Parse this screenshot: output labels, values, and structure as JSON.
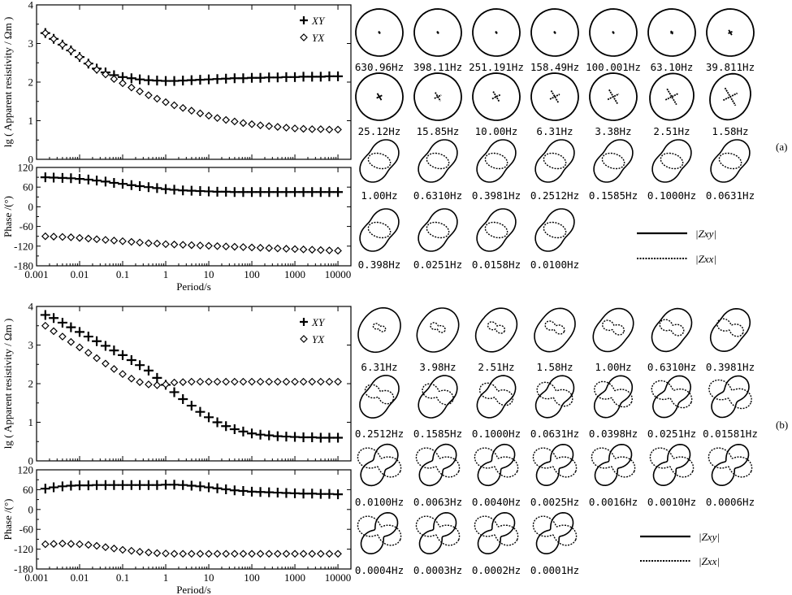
{
  "panel_labels": [
    "(a)",
    "(b)"
  ],
  "legend_polar": {
    "solid": "|Zxy|",
    "dotted": "|Zxx|"
  },
  "chart_data": [
    {
      "panel": "(a)",
      "type": "scatter",
      "subplot": "apparent-resistivity",
      "xlabel": "",
      "ylabel": "lg ( Apparent resistivity / Ωm )",
      "xscale": "log",
      "xlim": [
        0.001,
        20000
      ],
      "ylim": [
        0,
        4
      ],
      "yticks": [
        "0",
        "1",
        "2",
        "3",
        "4"
      ],
      "grid": false,
      "legend": "top-right",
      "series": [
        {
          "name": "XY",
          "marker": "plus",
          "x": [
            0.0016,
            0.0025,
            0.004,
            0.0063,
            0.01,
            0.016,
            0.025,
            0.04,
            0.063,
            0.1,
            0.16,
            0.25,
            0.4,
            0.63,
            1,
            1.58,
            2.51,
            3.98,
            6.31,
            10,
            15.8,
            25.1,
            39.8,
            63.1,
            100,
            158,
            251,
            398,
            631,
            1000,
            1580,
            2510,
            3980,
            6310,
            10000
          ],
          "y": [
            3.27,
            3.12,
            2.97,
            2.82,
            2.65,
            2.48,
            2.35,
            2.25,
            2.18,
            2.13,
            2.1,
            2.07,
            2.05,
            2.04,
            2.03,
            2.03,
            2.04,
            2.05,
            2.06,
            2.07,
            2.08,
            2.09,
            2.1,
            2.1,
            2.11,
            2.11,
            2.12,
            2.12,
            2.13,
            2.13,
            2.14,
            2.14,
            2.14,
            2.15,
            2.15
          ]
        },
        {
          "name": "YX",
          "marker": "diamond",
          "x": [
            0.0016,
            0.0025,
            0.004,
            0.0063,
            0.01,
            0.016,
            0.025,
            0.04,
            0.063,
            0.1,
            0.16,
            0.25,
            0.4,
            0.63,
            1,
            1.58,
            2.51,
            3.98,
            6.31,
            10,
            15.8,
            25.1,
            39.8,
            63.1,
            100,
            158,
            251,
            398,
            631,
            1000,
            1580,
            2510,
            3980,
            6310,
            10000
          ],
          "y": [
            3.27,
            3.12,
            2.97,
            2.82,
            2.65,
            2.48,
            2.32,
            2.2,
            2.08,
            1.97,
            1.86,
            1.76,
            1.66,
            1.57,
            1.48,
            1.4,
            1.33,
            1.26,
            1.19,
            1.13,
            1.07,
            1.02,
            0.98,
            0.94,
            0.91,
            0.88,
            0.86,
            0.84,
            0.82,
            0.8,
            0.79,
            0.78,
            0.78,
            0.77,
            0.77
          ]
        }
      ]
    },
    {
      "panel": "(a)",
      "type": "scatter",
      "subplot": "phase",
      "xlabel": "Period/s",
      "ylabel": "Phase /(°)",
      "xscale": "log",
      "xlim": [
        0.001,
        20000
      ],
      "ylim": [
        -180,
        120
      ],
      "yticks": [
        "-180",
        "-120",
        "-60",
        "0",
        "60",
        "120"
      ],
      "xticks": [
        "0.001",
        "0.01",
        "0.1",
        "1",
        "10",
        "100",
        "1000",
        "10000"
      ],
      "series": [
        {
          "name": "XY",
          "marker": "plus",
          "x": [
            0.0016,
            0.0025,
            0.004,
            0.0063,
            0.01,
            0.016,
            0.025,
            0.04,
            0.063,
            0.1,
            0.16,
            0.25,
            0.4,
            0.63,
            1,
            1.58,
            2.51,
            3.98,
            6.31,
            10,
            15.8,
            25.1,
            39.8,
            63.1,
            100,
            158,
            251,
            398,
            631,
            1000,
            1580,
            2510,
            3980,
            6310,
            10000
          ],
          "y": [
            90,
            89,
            88,
            87,
            85,
            83,
            80,
            77,
            73,
            70,
            66,
            63,
            60,
            57,
            54,
            52,
            50,
            49,
            48,
            47,
            46,
            46,
            45,
            45,
            45,
            45,
            45,
            45,
            45,
            45,
            45,
            45,
            45,
            45,
            45
          ]
        },
        {
          "name": "YX",
          "marker": "diamond",
          "x": [
            0.0016,
            0.0025,
            0.004,
            0.0063,
            0.01,
            0.016,
            0.025,
            0.04,
            0.063,
            0.1,
            0.16,
            0.25,
            0.4,
            0.63,
            1,
            1.58,
            2.51,
            3.98,
            6.31,
            10,
            15.8,
            25.1,
            39.8,
            63.1,
            100,
            158,
            251,
            398,
            631,
            1000,
            1580,
            2510,
            3980,
            6310,
            10000
          ],
          "y": [
            -90,
            -91,
            -92,
            -93,
            -95,
            -97,
            -99,
            -101,
            -103,
            -105,
            -107,
            -109,
            -111,
            -112,
            -114,
            -115,
            -116,
            -117,
            -118,
            -119,
            -120,
            -121,
            -122,
            -123,
            -124,
            -125,
            -126,
            -127,
            -128,
            -129,
            -130,
            -131,
            -132,
            -133,
            -134
          ]
        }
      ]
    },
    {
      "panel": "(b)",
      "type": "scatter",
      "subplot": "apparent-resistivity",
      "xlabel": "",
      "ylabel": "lg ( Apparent resistivity / Ωm )",
      "xscale": "log",
      "xlim": [
        0.001,
        20000
      ],
      "ylim": [
        0,
        4
      ],
      "yticks": [
        "0",
        "1",
        "2",
        "3",
        "4"
      ],
      "grid": false,
      "legend": "top-right",
      "series": [
        {
          "name": "XY",
          "marker": "plus",
          "x": [
            0.0016,
            0.0025,
            0.004,
            0.0063,
            0.01,
            0.016,
            0.025,
            0.04,
            0.063,
            0.1,
            0.16,
            0.25,
            0.4,
            0.63,
            1,
            1.58,
            2.51,
            3.98,
            6.31,
            10,
            15.8,
            25.1,
            39.8,
            63.1,
            100,
            158,
            251,
            398,
            631,
            1000,
            1580,
            2510,
            3980,
            6310,
            10000
          ],
          "y": [
            3.78,
            3.7,
            3.58,
            3.46,
            3.34,
            3.22,
            3.1,
            2.98,
            2.86,
            2.74,
            2.61,
            2.48,
            2.34,
            2.15,
            1.97,
            1.78,
            1.6,
            1.43,
            1.27,
            1.13,
            1.0,
            0.9,
            0.82,
            0.76,
            0.71,
            0.68,
            0.66,
            0.64,
            0.63,
            0.62,
            0.61,
            0.61,
            0.6,
            0.6,
            0.6
          ]
        },
        {
          "name": "YX",
          "marker": "diamond",
          "x": [
            0.0016,
            0.0025,
            0.004,
            0.0063,
            0.01,
            0.016,
            0.025,
            0.04,
            0.063,
            0.1,
            0.16,
            0.25,
            0.4,
            0.63,
            1,
            1.58,
            2.51,
            3.98,
            6.31,
            10,
            15.8,
            25.1,
            39.8,
            63.1,
            100,
            158,
            251,
            398,
            631,
            1000,
            1580,
            2510,
            3980,
            6310,
            10000
          ],
          "y": [
            3.5,
            3.36,
            3.22,
            3.08,
            2.94,
            2.8,
            2.66,
            2.52,
            2.38,
            2.25,
            2.13,
            2.04,
            1.98,
            1.96,
            1.98,
            2.03,
            2.04,
            2.05,
            2.05,
            2.05,
            2.05,
            2.05,
            2.05,
            2.05,
            2.05,
            2.05,
            2.05,
            2.05,
            2.05,
            2.05,
            2.05,
            2.05,
            2.05,
            2.05,
            2.05
          ]
        }
      ]
    },
    {
      "panel": "(b)",
      "type": "scatter",
      "subplot": "phase",
      "xlabel": "Period/s",
      "ylabel": "Phase /(°)",
      "xscale": "log",
      "xlim": [
        0.001,
        20000
      ],
      "ylim": [
        -180,
        120
      ],
      "yticks": [
        "-180",
        "-120",
        "-60",
        "0",
        "60",
        "120"
      ],
      "xticks": [
        "0.001",
        "0.01",
        "0.1",
        "1",
        "10",
        "100",
        "1000",
        "10000"
      ],
      "series": [
        {
          "name": "XY",
          "marker": "plus",
          "x": [
            0.0016,
            0.0025,
            0.004,
            0.0063,
            0.01,
            0.016,
            0.025,
            0.04,
            0.063,
            0.1,
            0.16,
            0.25,
            0.4,
            0.63,
            1,
            1.58,
            2.51,
            3.98,
            6.31,
            10,
            15.8,
            25.1,
            39.8,
            63.1,
            100,
            158,
            251,
            398,
            631,
            1000,
            1580,
            2510,
            3980,
            6310,
            10000
          ],
          "y": [
            63,
            67,
            70,
            72,
            73,
            73,
            74,
            74,
            74,
            74,
            74,
            74,
            74,
            74,
            75,
            75,
            74,
            72,
            70,
            67,
            64,
            61,
            58,
            56,
            54,
            53,
            52,
            51,
            50,
            49,
            48,
            48,
            47,
            47,
            46
          ]
        },
        {
          "name": "YX",
          "marker": "diamond",
          "x": [
            0.0016,
            0.0025,
            0.004,
            0.0063,
            0.01,
            0.016,
            0.025,
            0.04,
            0.063,
            0.1,
            0.16,
            0.25,
            0.4,
            0.63,
            1,
            1.58,
            2.51,
            3.98,
            6.31,
            10,
            15.8,
            25.1,
            39.8,
            63.1,
            100,
            158,
            251,
            398,
            631,
            1000,
            1580,
            2510,
            3980,
            6310,
            10000
          ],
          "y": [
            -105,
            -104,
            -103,
            -104,
            -105,
            -107,
            -110,
            -114,
            -118,
            -122,
            -125,
            -128,
            -130,
            -132,
            -133,
            -134,
            -134,
            -134,
            -134,
            -134,
            -134,
            -134,
            -134,
            -134,
            -134,
            -134,
            -134,
            -134,
            -134,
            -134,
            -134,
            -134,
            -134,
            -134,
            -134
          ]
        }
      ]
    },
    {
      "panel": "(a)",
      "type": "polar-diagram-grid",
      "frequencies": [
        "630.96Hz",
        "398.11Hz",
        "251.191Hz",
        "158.49Hz",
        "100.001Hz",
        "63.10Hz",
        "39.811Hz",
        "25.12Hz",
        "15.85Hz",
        "10.00Hz",
        "6.31Hz",
        "3.38Hz",
        "2.51Hz",
        "1.58Hz",
        "1.00Hz",
        "0.6310Hz",
        "0.3981Hz",
        "0.2512Hz",
        "0.1585Hz",
        "0.1000Hz",
        "0.0631Hz",
        "0.398Hz",
        "0.0251Hz",
        "0.0158Hz",
        "0.0100Hz"
      ]
    },
    {
      "panel": "(b)",
      "type": "polar-diagram-grid",
      "frequencies": [
        "6.31Hz",
        "3.98Hz",
        "2.51Hz",
        "1.58Hz",
        "1.00Hz",
        "0.6310Hz",
        "0.3981Hz",
        "0.2512Hz",
        "0.1585Hz",
        "0.1000Hz",
        "0.0631Hz",
        "0.0398Hz",
        "0.0251Hz",
        "0.01581Hz",
        "0.0100Hz",
        "0.0063Hz",
        "0.0040Hz",
        "0.0025Hz",
        "0.0016Hz",
        "0.0010Hz",
        "0.0006Hz",
        "0.0004Hz",
        "0.0003Hz",
        "0.0002Hz",
        "0.0001Hz"
      ]
    }
  ]
}
